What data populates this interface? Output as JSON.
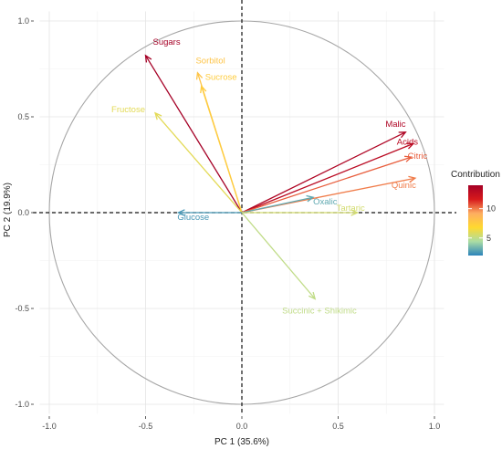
{
  "chart_data": {
    "type": "pca_biplot",
    "xlabel": "PC 1 (35.6%)",
    "ylabel": "PC 2 (19.9%)",
    "xlim": [
      -1.0,
      1.0
    ],
    "ylim": [
      -1.0,
      1.0
    ],
    "x_ticks": [
      "-1.0",
      "-0.5",
      "0.0",
      "0.5",
      "1.0"
    ],
    "y_ticks": [
      "1.0",
      "0.5",
      "0.0",
      "-0.5",
      "-1.0"
    ],
    "grid": true,
    "unit_circle": true,
    "legend": {
      "title": "Contribution",
      "position": "right",
      "range": [
        2,
        14
      ],
      "ticks": [
        "10",
        "5"
      ],
      "colors": [
        "#2b83ba",
        "#abdda4",
        "#ffd92f",
        "#fdae61",
        "#d7191c",
        "#a50026"
      ]
    },
    "vectors": [
      {
        "label": "Sugars",
        "x": -0.5,
        "y": 0.82,
        "contribution": 14.0
      },
      {
        "label": "Sorbitol",
        "x": -0.23,
        "y": 0.73,
        "contribution": 8.0
      },
      {
        "label": "Sucrose",
        "x": -0.21,
        "y": 0.66,
        "contribution": 7.5
      },
      {
        "label": "Fructose",
        "x": -0.45,
        "y": 0.52,
        "contribution": 6.0
      },
      {
        "label": "Glucose",
        "x": -0.33,
        "y": 0.0,
        "contribution": 2.5
      },
      {
        "label": "Malic",
        "x": 0.85,
        "y": 0.42,
        "contribution": 13.5
      },
      {
        "label": "Acids",
        "x": 0.89,
        "y": 0.36,
        "contribution": 13.0
      },
      {
        "label": "Citric",
        "x": 0.88,
        "y": 0.29,
        "contribution": 10.5
      },
      {
        "label": "Quinic",
        "x": 0.9,
        "y": 0.18,
        "contribution": 10.0
      },
      {
        "label": "Oxalic",
        "x": 0.37,
        "y": 0.08,
        "contribution": 3.0
      },
      {
        "label": "Tartaric",
        "x": 0.6,
        "y": 0.0,
        "contribution": 5.5
      },
      {
        "label": "Succinic + Shikimic",
        "x": 0.38,
        "y": -0.45,
        "contribution": 5.0
      }
    ]
  }
}
